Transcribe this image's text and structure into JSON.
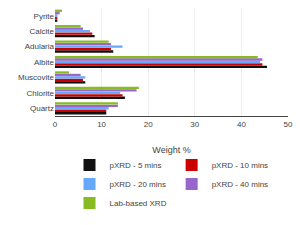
{
  "chart_data": {
    "type": "bar",
    "orientation": "horizontal",
    "categories": [
      "Quartz",
      "Chlorite",
      "Muscovite",
      "Albite",
      "Adularia",
      "Calcite",
      "Pyrite"
    ],
    "series": [
      {
        "name": "pXRD - 5 mins",
        "color": "#111111",
        "values": [
          11.0,
          15.0,
          6.5,
          45.5,
          12.5,
          8.5,
          0.5
        ]
      },
      {
        "name": "pXRD - 10 mins",
        "color": "#cc0000",
        "values": [
          11.0,
          14.5,
          6.0,
          44.5,
          12.0,
          8.0,
          0.5
        ]
      },
      {
        "name": "pXRD - 20 mins",
        "color": "#66aaff",
        "values": [
          11.5,
          14.0,
          6.5,
          44.0,
          14.5,
          7.5,
          0.5
        ]
      },
      {
        "name": "pXRD - 40 mins",
        "color": "#9966cc",
        "values": [
          13.5,
          17.5,
          5.5,
          44.5,
          12.0,
          6.0,
          1.0
        ]
      },
      {
        "name": "Lab-based XRD",
        "color": "#88bb22",
        "values": [
          13.5,
          18.0,
          3.0,
          43.5,
          11.5,
          5.5,
          1.5
        ]
      }
    ],
    "xlabel": "Weight %",
    "xlim": [
      0,
      50
    ],
    "xticks": [
      0,
      10,
      20,
      30,
      40,
      50
    ],
    "grid": true,
    "legend": "bottom"
  }
}
